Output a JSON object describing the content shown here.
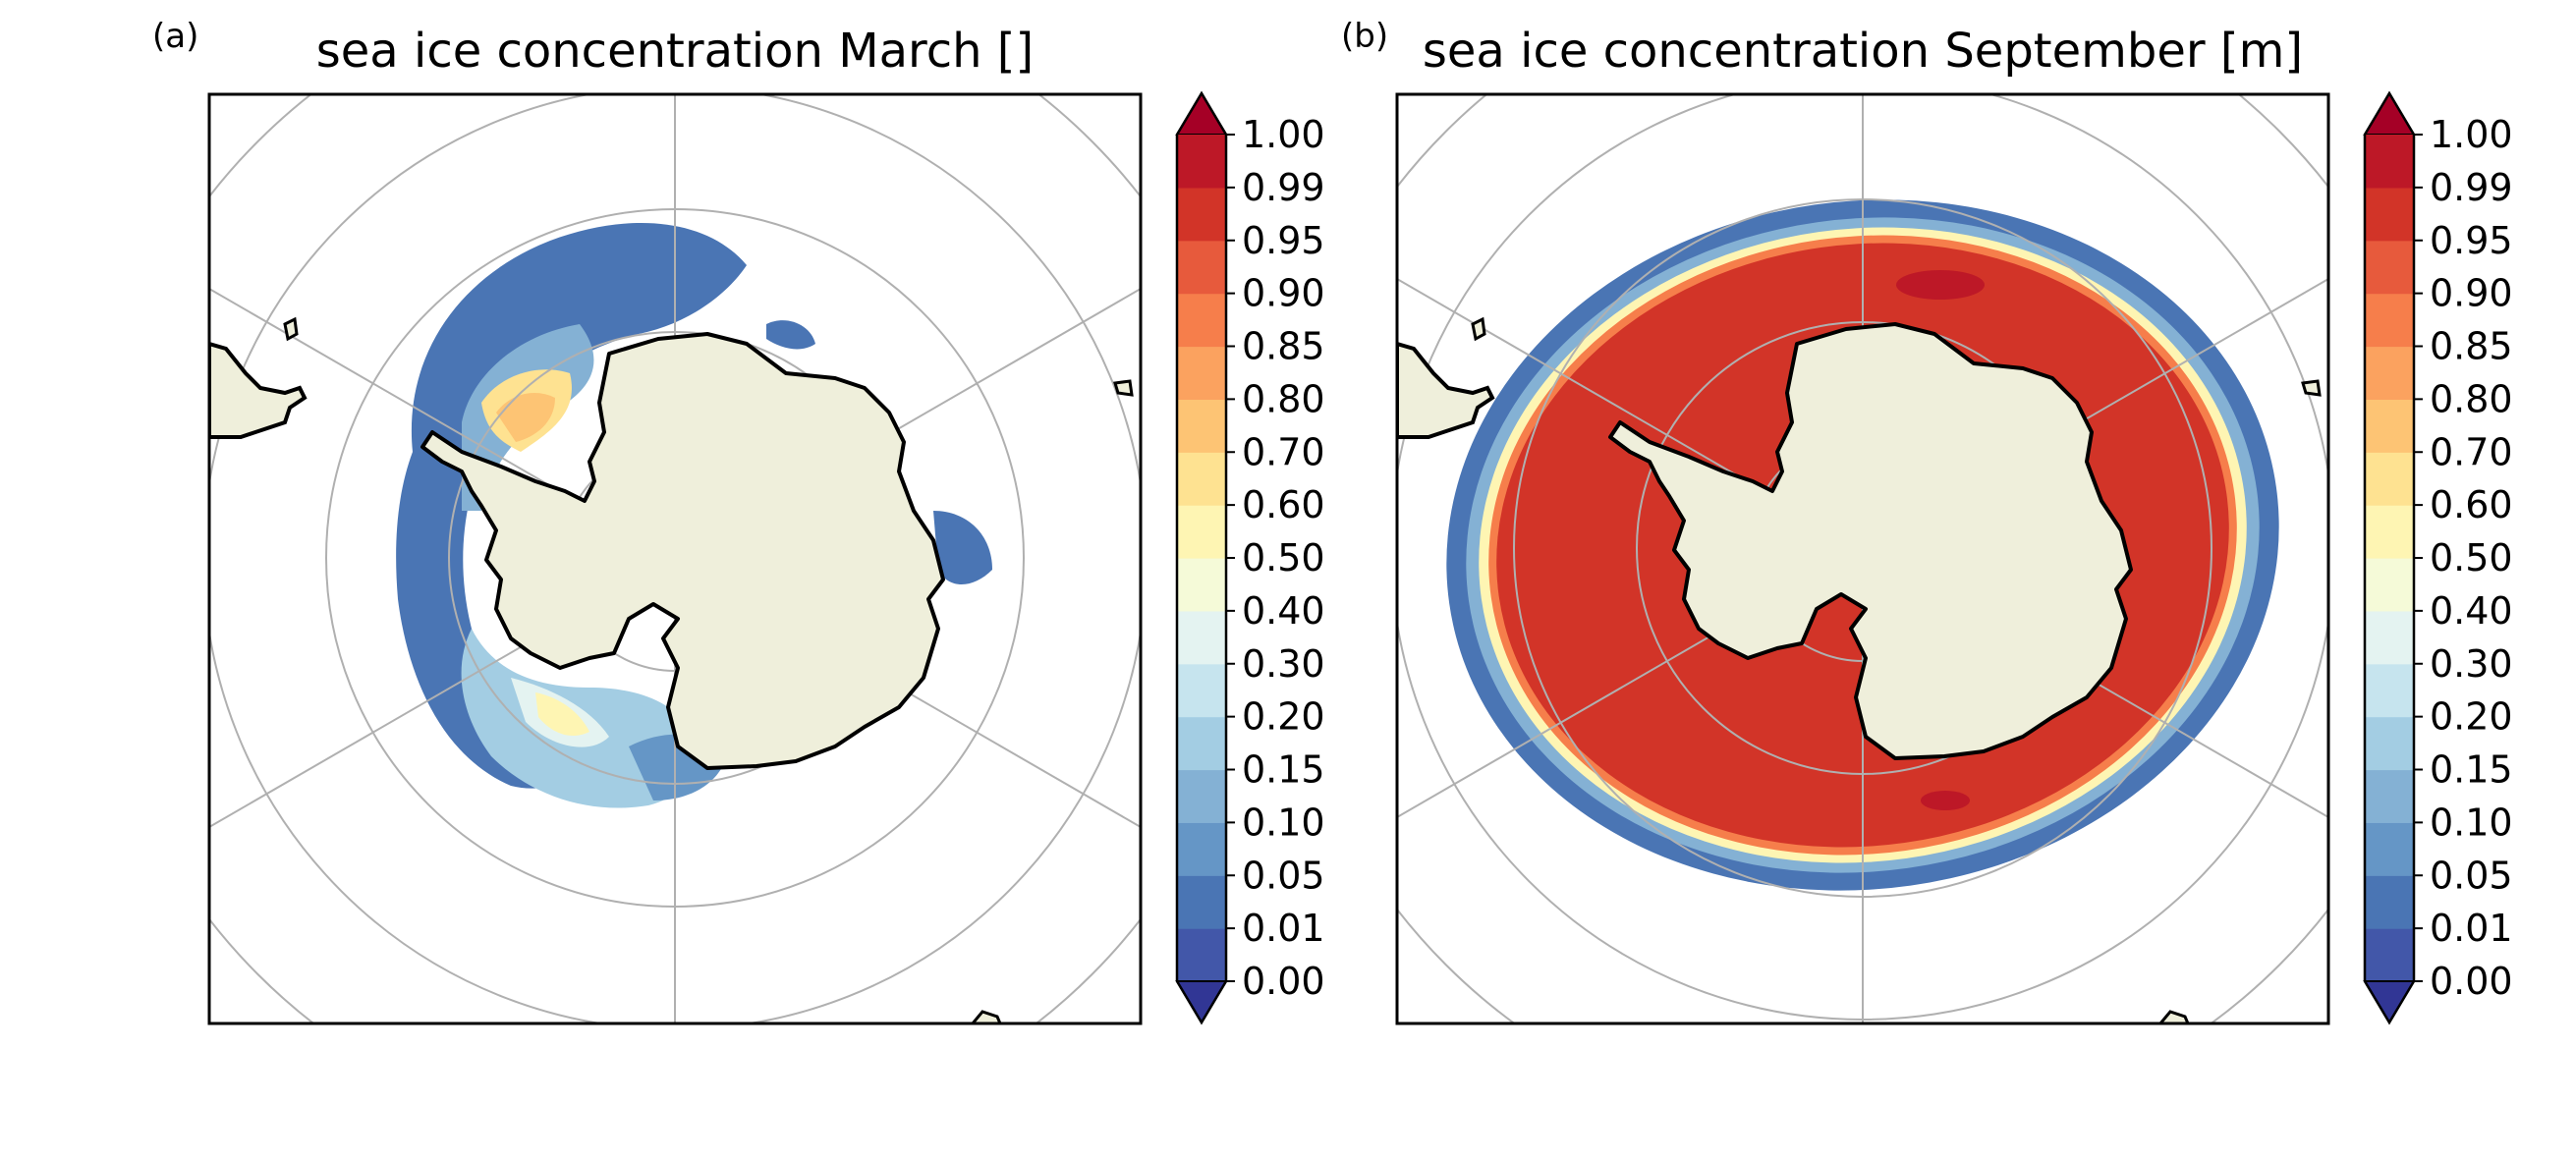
{
  "panels": [
    {
      "label": "(a)",
      "title": "sea ice concentration March []",
      "month": "March"
    },
    {
      "label": "(b)",
      "title": "sea ice concentration September [m]",
      "month": "September"
    }
  ],
  "colorbar": {
    "ticks": [
      "0.00",
      "0.01",
      "0.05",
      "0.10",
      "0.15",
      "0.20",
      "0.30",
      "0.40",
      "0.50",
      "0.60",
      "0.70",
      "0.80",
      "0.85",
      "0.90",
      "0.95",
      "0.99",
      "1.00"
    ],
    "colors": [
      "#4257a9",
      "#4a75b4",
      "#6596c6",
      "#84b1d4",
      "#a3cde3",
      "#c6e4ee",
      "#e4f3f1",
      "#f5fad8",
      "#fef5b3",
      "#fee291",
      "#fdc474",
      "#fba25f",
      "#f67e4b",
      "#e75a3c",
      "#d23428",
      "#bd1827"
    ],
    "under_color": "#313695",
    "over_color": "#a50026"
  },
  "map": {
    "land_color": "#efefdb",
    "coast_color": "#000000",
    "grid_color": "#b0b0b0",
    "projection": "south-polar-stereographic"
  }
}
